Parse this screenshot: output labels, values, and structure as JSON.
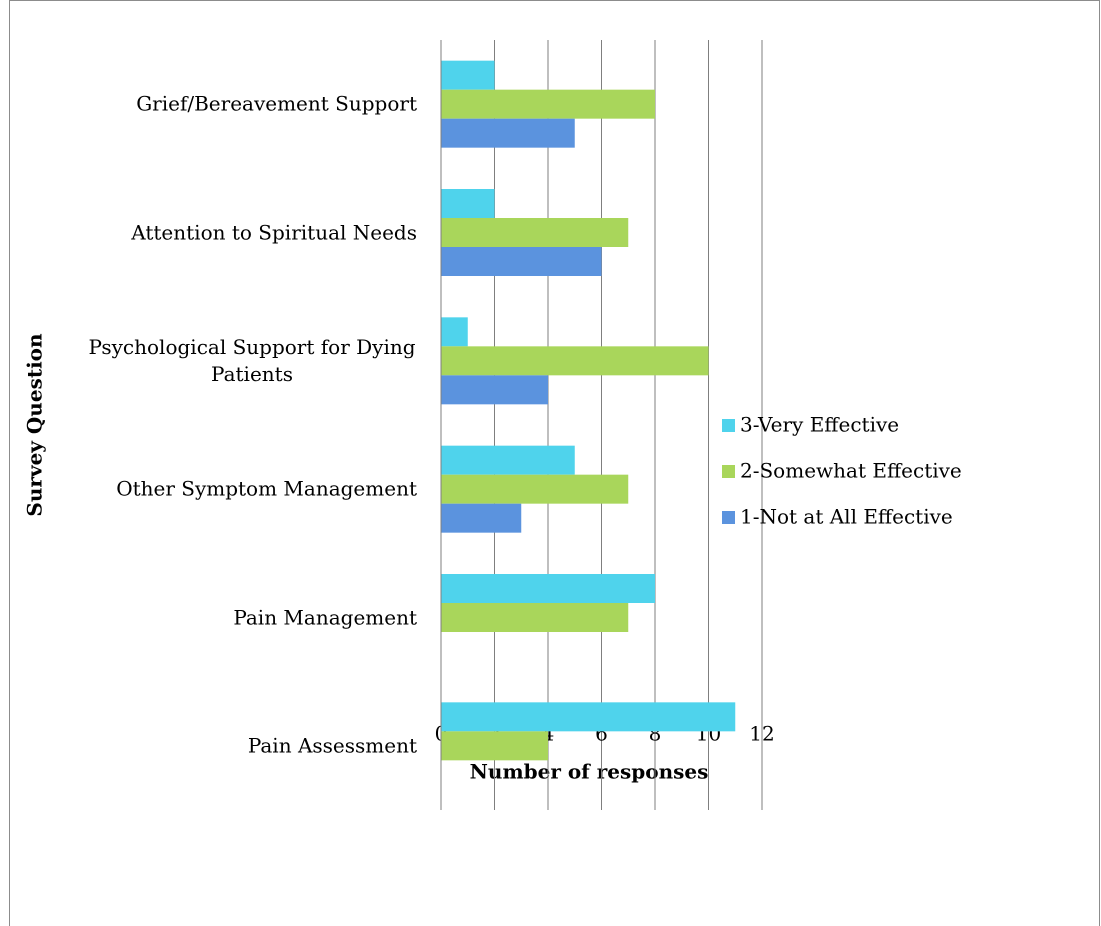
{
  "chart_data": {
    "type": "hbar",
    "categories": [
      "Pain Assessment",
      "Pain Management",
      "Other Symptom Management",
      "Psychological Support for Dying Patients",
      "Attention to Spiritual Needs",
      "Grief/Bereavement Support"
    ],
    "series": [
      {
        "name": "3-Very Effective",
        "color": "#4fd3ec",
        "values": [
          11,
          8,
          5,
          1,
          2,
          2
        ]
      },
      {
        "name": "2-Somewhat Effective",
        "color": "#a9d65b",
        "values": [
          4,
          7,
          7,
          10,
          7,
          8
        ]
      },
      {
        "name": "1-Not at All Effective",
        "color": "#5b93de",
        "values": [
          0,
          0,
          3,
          4,
          6,
          5
        ]
      }
    ],
    "xlim": [
      0,
      12
    ],
    "xticks": [
      0,
      2,
      4,
      6,
      8,
      10,
      12
    ],
    "grid": true,
    "x_label": "Number of responses",
    "y_label": "Survey Question",
    "legend": "right"
  }
}
